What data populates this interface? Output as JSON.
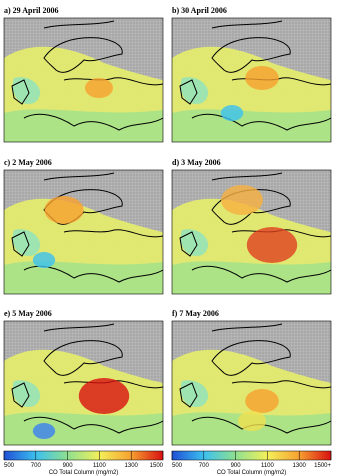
{
  "panels": [
    {
      "title": "a) 29 April 2006"
    },
    {
      "title": "b) 30 April 2006"
    },
    {
      "title": "c) 2 May 2006"
    },
    {
      "title": "d) 3 May 2006"
    },
    {
      "title": "e) 5 May 2006"
    },
    {
      "title": "f) 7 May 2006"
    }
  ],
  "colorbars": [
    {
      "label": "CO Total Column (mg/m2)",
      "lim": [
        500,
        1500
      ],
      "ticks": [
        500,
        700,
        900,
        1100,
        1300,
        1500
      ]
    },
    {
      "label": "CO Total Column (mg/m2)",
      "lim": [
        500,
        1500
      ],
      "ticks": [
        500,
        700,
        900,
        1100,
        1300,
        {
          "value": 1500,
          "label": "1500+"
        }
      ]
    }
  ]
}
